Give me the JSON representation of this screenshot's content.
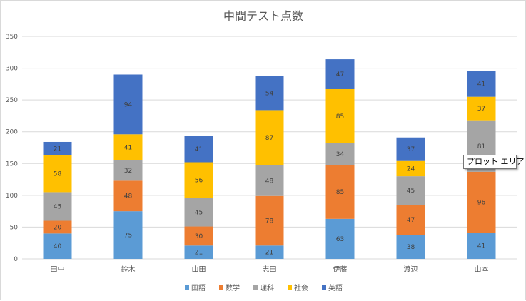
{
  "colors": {
    "国語": "#5b9bd5",
    "数学": "#ed7d31",
    "理科": "#a5a5a5",
    "社会": "#ffc000",
    "英語": "#4472c4",
    "grid": "#d9d9d9",
    "text": "#595959"
  },
  "tooltip": {
    "text": "プロット エリア"
  },
  "chart_data": {
    "type": "bar",
    "stacked": true,
    "title": "中間テスト点数",
    "xlabel": "",
    "ylabel": "",
    "ylim": [
      0,
      350
    ],
    "yticks": [
      0,
      50,
      100,
      150,
      200,
      250,
      300,
      350
    ],
    "grid": true,
    "legend_position": "bottom",
    "categories": [
      "田中",
      "鈴木",
      "山田",
      "志田",
      "伊藤",
      "渡辺",
      "山本"
    ],
    "series": [
      {
        "name": "国語",
        "values": [
          40,
          75,
          21,
          21,
          63,
          38,
          41
        ]
      },
      {
        "name": "数学",
        "values": [
          20,
          48,
          30,
          78,
          85,
          47,
          96
        ]
      },
      {
        "name": "理科",
        "values": [
          45,
          32,
          45,
          48,
          34,
          45,
          81
        ]
      },
      {
        "name": "社会",
        "values": [
          58,
          41,
          56,
          87,
          85,
          24,
          37
        ]
      },
      {
        "name": "英語",
        "values": [
          21,
          94,
          41,
          54,
          47,
          37,
          41
        ]
      }
    ]
  }
}
